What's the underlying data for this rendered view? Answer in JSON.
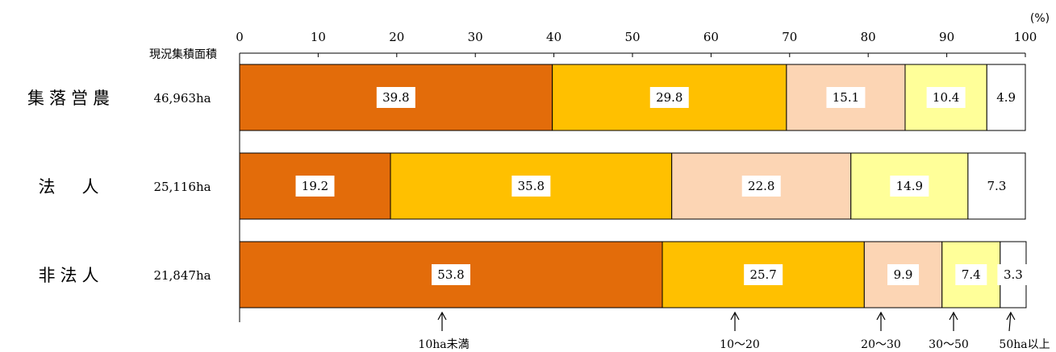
{
  "chart_data": {
    "type": "bar",
    "orientation": "horizontal",
    "stacked": true,
    "unit": "(%)",
    "area_header": "現況集積面積",
    "xlim": [
      0,
      100
    ],
    "xticks": [
      0,
      10,
      20,
      30,
      40,
      50,
      60,
      70,
      80,
      90,
      100
    ],
    "categories": [
      "集落営農",
      "法　人",
      "非法人"
    ],
    "areas": [
      "46,963ha",
      "25,116ha",
      "21,847ha"
    ],
    "series": [
      {
        "name": "10ha未満",
        "color": "#e36c0a",
        "values": [
          39.8,
          19.2,
          53.8
        ]
      },
      {
        "name": "10～20",
        "color": "#ffc000",
        "values": [
          29.8,
          35.8,
          25.7
        ]
      },
      {
        "name": "20～30",
        "color": "#fcd5b4",
        "values": [
          15.1,
          22.8,
          9.9
        ]
      },
      {
        "name": "30～50",
        "color": "#ffff99",
        "values": [
          10.4,
          14.9,
          7.4
        ]
      },
      {
        "name": "50ha以上",
        "color": "#ffffff",
        "values": [
          4.9,
          7.3,
          3.3
        ]
      }
    ],
    "legend_placement": "bottom",
    "grid": false
  }
}
